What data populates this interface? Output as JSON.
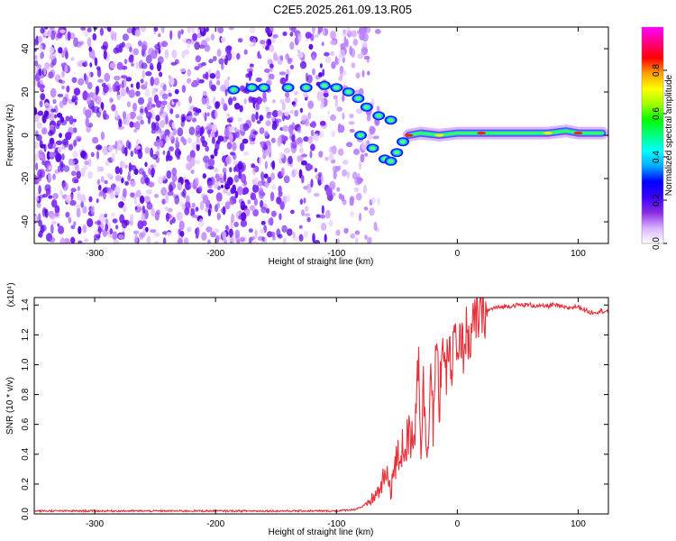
{
  "title": "C2E5.2025.261.09.13.R05",
  "chart_data": [
    {
      "type": "heatmap",
      "xlabel": "Height of straight line (km)",
      "ylabel": "Frequency (Hz)",
      "xlim": [
        -350,
        125
      ],
      "ylim": [
        -50,
        50
      ],
      "xticks": [
        -300,
        -200,
        -100,
        0,
        100
      ],
      "yticks": [
        -40,
        -20,
        0,
        20,
        40
      ],
      "colorbar": {
        "label": "Normalized spectral amplitude",
        "range": [
          0,
          1
        ],
        "ticks": [
          "0.0",
          "0.2",
          "0.4",
          "0.6",
          "0.8"
        ],
        "colors": [
          "#ffffff",
          "#d9b3ff",
          "#8a2be2",
          "#3b00ff",
          "#0000ff",
          "#00aaff",
          "#00ffff",
          "#00ff80",
          "#00ff00",
          "#a0ff00",
          "#ffff00",
          "#ffa000",
          "#ff0000",
          "#ff0080",
          "#ff00ff"
        ]
      },
      "ridge": [
        {
          "x": -185,
          "y": 21
        },
        {
          "x": -170,
          "y": 22
        },
        {
          "x": -160,
          "y": 22
        },
        {
          "x": -140,
          "y": 22
        },
        {
          "x": -125,
          "y": 22
        },
        {
          "x": -110,
          "y": 23
        },
        {
          "x": -100,
          "y": 22
        },
        {
          "x": -90,
          "y": 20
        },
        {
          "x": -82,
          "y": 17
        },
        {
          "x": -75,
          "y": 13
        },
        {
          "x": -65,
          "y": 9
        },
        {
          "x": -55,
          "y": 7
        },
        {
          "x": -80,
          "y": 0
        },
        {
          "x": -70,
          "y": -6
        },
        {
          "x": -60,
          "y": -11
        },
        {
          "x": -55,
          "y": -12
        },
        {
          "x": -50,
          "y": -8
        },
        {
          "x": -45,
          "y": -3
        },
        {
          "x": -40,
          "y": 0
        },
        {
          "x": -30,
          "y": 1
        },
        {
          "x": -15,
          "y": 0
        },
        {
          "x": 0,
          "y": 1
        },
        {
          "x": 20,
          "y": 1
        },
        {
          "x": 50,
          "y": 1
        },
        {
          "x": 75,
          "y": 1
        },
        {
          "x": 90,
          "y": 2
        },
        {
          "x": 100,
          "y": 1
        },
        {
          "x": 120,
          "y": 1
        }
      ],
      "noise_extent_x": [
        -350,
        -85
      ]
    },
    {
      "type": "line",
      "xlabel": "Height of straight line (km)",
      "ylabel": "SNR (10 * v/v)",
      "yscale_label": "(x10⁴)",
      "xlim": [
        -350,
        125
      ],
      "ylim": [
        0,
        1.45
      ],
      "xticks": [
        -300,
        -200,
        -100,
        0,
        100
      ],
      "yticks": [
        "0.0",
        "0.2",
        "0.4",
        "0.6",
        "0.8",
        "1.0",
        "1.2",
        "1.4"
      ],
      "color": "#e8303a",
      "series": [
        {
          "x": [
            -350,
            -300,
            -250,
            -200,
            -150,
            -100,
            -85,
            -75,
            -65,
            -60,
            -55,
            -50,
            -45,
            -40,
            -35,
            -32,
            -30,
            -28,
            -25,
            -22,
            -20,
            -17,
            -15,
            -12,
            -10,
            -7,
            -5,
            -2,
            0,
            3,
            5,
            8,
            10,
            15,
            20,
            25,
            30,
            40,
            50,
            60,
            70,
            80,
            90,
            100,
            110,
            120,
            125
          ],
          "y": [
            0.02,
            0.02,
            0.02,
            0.02,
            0.02,
            0.02,
            0.03,
            0.06,
            0.15,
            0.25,
            0.2,
            0.35,
            0.45,
            0.5,
            0.6,
            1.1,
            0.45,
            0.85,
            0.4,
            1.0,
            0.6,
            1.15,
            0.7,
            1.25,
            0.8,
            1.2,
            0.9,
            1.25,
            0.95,
            1.2,
            1.1,
            1.25,
            1.15,
            1.3,
            1.34,
            1.36,
            1.38,
            1.39,
            1.4,
            1.4,
            1.39,
            1.4,
            1.38,
            1.39,
            1.35,
            1.36,
            1.36
          ]
        }
      ]
    }
  ]
}
